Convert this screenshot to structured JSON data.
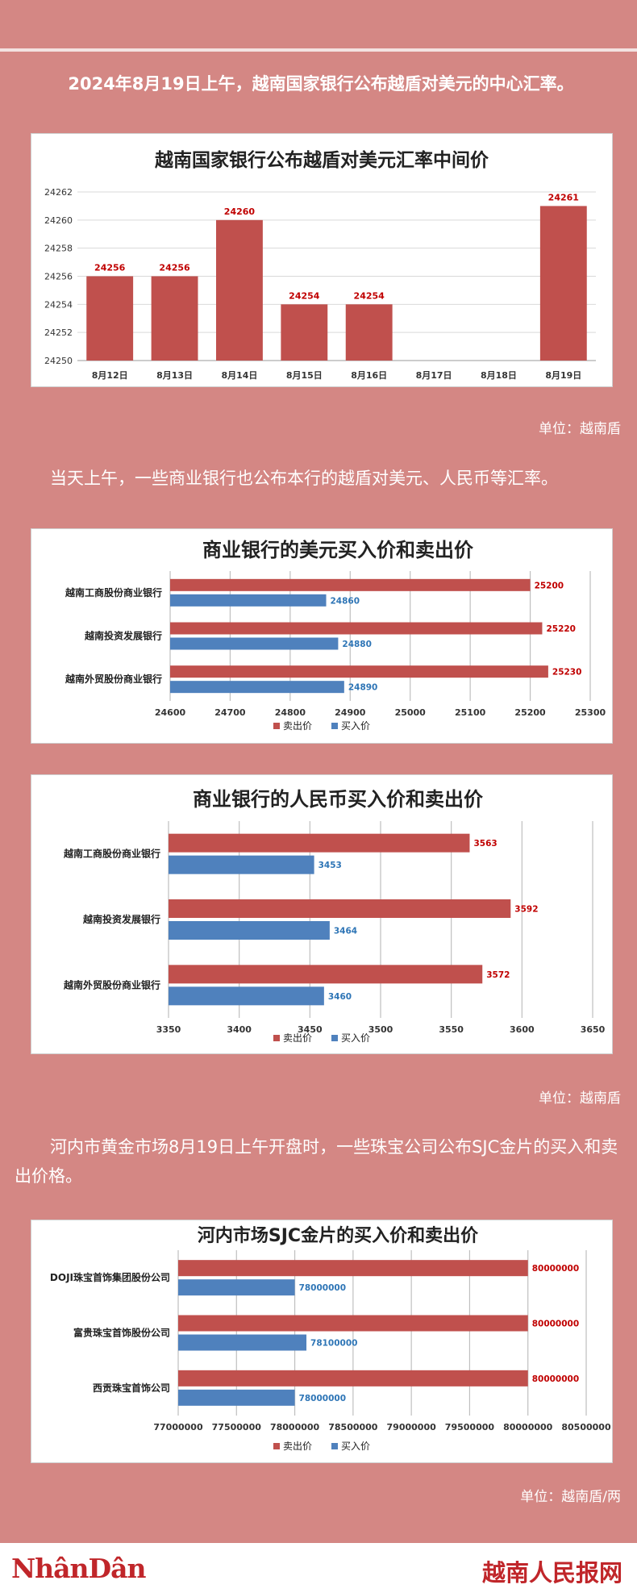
{
  "intro1": "2024年8月19日上午，越南国家银行公布越盾对美元的中心汇率。",
  "unit1": "单位：越南盾",
  "intro2": "当天上午，一些商业银行也公布本行的越盾对美元、人民币等汇率。",
  "unit2": "单位：越南盾",
  "intro3": "河内市黄金市场8月19日上午开盘时，一些珠宝公司公布SJC金片的买入和卖出价格。",
  "unit3": "单位：越南盾/两",
  "footer": {
    "left_logo": "NhânDân",
    "right_logo": "越南人民报网"
  },
  "colors": {
    "red": "#c0504d",
    "blue": "#4f81bd",
    "red_label": "#c00000",
    "blue_label": "#2e75b6"
  },
  "chart_data": [
    {
      "type": "bar",
      "title": "越南国家银行公布越盾对美元汇率中间价",
      "categories": [
        "8月12日",
        "8月13日",
        "8月14日",
        "8月15日",
        "8月16日",
        "8月17日",
        "8月18日",
        "8月19日"
      ],
      "values": [
        24256,
        24256,
        24260,
        24254,
        24254,
        null,
        null,
        24261
      ],
      "ylim": [
        24250,
        24262
      ],
      "yticks": [
        24262,
        24260,
        24258,
        24256,
        24254,
        24252,
        24250
      ],
      "grid": true
    },
    {
      "type": "bar",
      "orientation": "horizontal",
      "title": "商业银行的美元买入价和卖出价",
      "categories": [
        "越南工商股份商业银行",
        "越南投资发展银行",
        "越南外贸股份商业银行"
      ],
      "series": [
        {
          "name": "卖出价",
          "values": [
            25200,
            25220,
            25230
          ]
        },
        {
          "name": "买入价",
          "values": [
            24860,
            24880,
            24890
          ]
        }
      ],
      "xlim": [
        24600,
        25300
      ],
      "xticks": [
        24600,
        24700,
        24800,
        24900,
        25000,
        25100,
        25200,
        25300
      ],
      "legend": "bottom"
    },
    {
      "type": "bar",
      "orientation": "horizontal",
      "title": "商业银行的人民币买入价和卖出价",
      "categories": [
        "越南工商股份商业银行",
        "越南投资发展银行",
        "越南外贸股份商业银行"
      ],
      "series": [
        {
          "name": "卖出价",
          "values": [
            3563,
            3592,
            3572
          ]
        },
        {
          "name": "买入价",
          "values": [
            3453,
            3464,
            3460
          ]
        }
      ],
      "xlim": [
        3350,
        3650
      ],
      "xticks": [
        3350,
        3400,
        3450,
        3500,
        3550,
        3600,
        3650
      ],
      "legend": "bottom"
    },
    {
      "type": "bar",
      "orientation": "horizontal",
      "title": "河内市场SJC金片的买入价和卖出价",
      "categories": [
        "DOJI珠宝首饰集团股份公司",
        "富贵珠宝首饰股份公司",
        "西贡珠宝首饰公司"
      ],
      "series": [
        {
          "name": "卖出价",
          "values": [
            80000000,
            80000000,
            80000000
          ]
        },
        {
          "name": "买入价",
          "values": [
            78000000,
            78100000,
            78000000
          ]
        }
      ],
      "xlim": [
        77000000,
        80500000
      ],
      "xticks": [
        77000000,
        77500000,
        78000000,
        78500000,
        79000000,
        79500000,
        80000000,
        80500000
      ],
      "legend": "bottom"
    }
  ]
}
